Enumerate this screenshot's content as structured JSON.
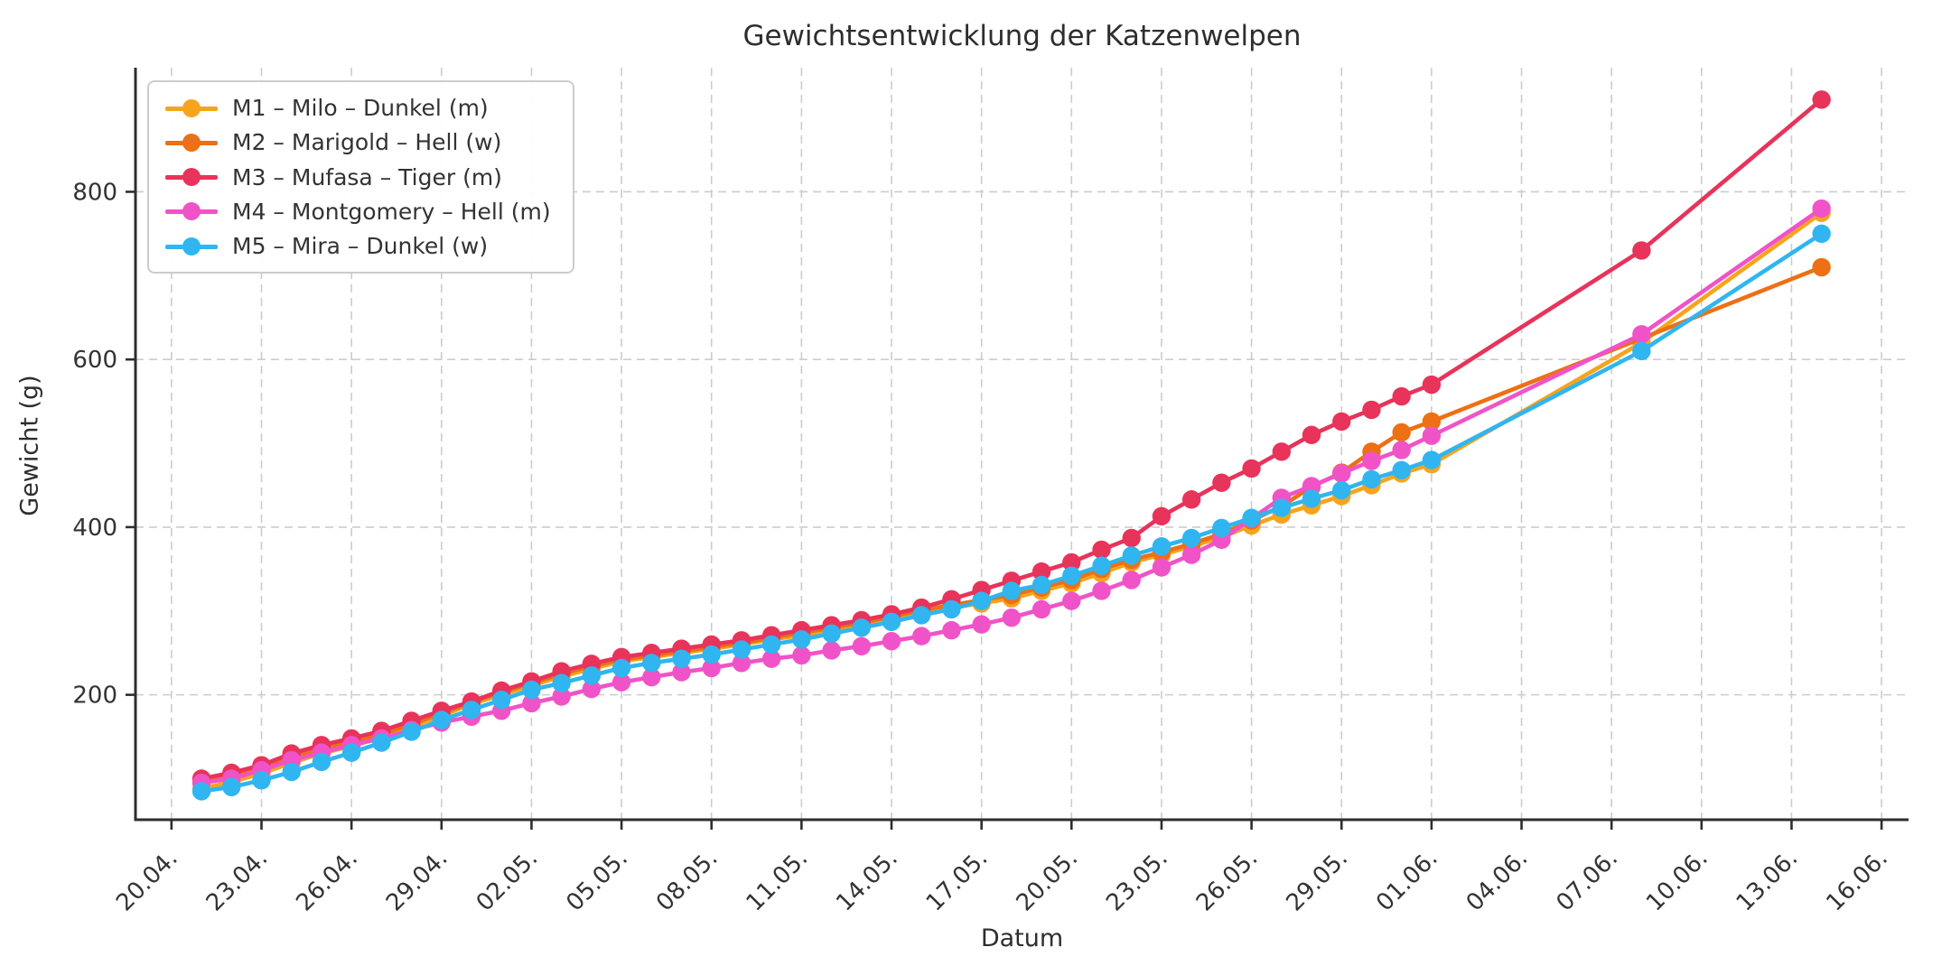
{
  "chart_data": {
    "type": "line",
    "title": "Gewichtsentwicklung der Katzenwelpen",
    "xlabel": "Datum",
    "ylabel": "Gewicht (g)",
    "grid": true,
    "grid_color": "#cccccc",
    "legend_position": "upper left",
    "x_unit": "days after 20.04.",
    "xlim_days": [
      -1.2,
      57.9
    ],
    "ylim": [
      51,
      948
    ],
    "y_ticks": [
      200,
      400,
      600,
      800
    ],
    "x_tick_days": [
      0,
      3,
      6,
      9,
      12,
      15,
      18,
      21,
      24,
      27,
      30,
      33,
      36,
      39,
      42,
      45,
      48,
      51,
      54,
      57
    ],
    "x_tick_labels": [
      "20.04.",
      "23.04.",
      "26.04.",
      "29.04.",
      "02.05.",
      "05.05.",
      "08.05.",
      "11.05.",
      "14.05.",
      "17.05.",
      "20.05.",
      "23.05.",
      "26.05.",
      "29.05.",
      "01.06.",
      "04.06.",
      "07.06.",
      "10.06.",
      "13.06.",
      "16.06."
    ],
    "daily_note": "each series has daily measurements from 21.04. (day 1) to 01.06. (day 42); extra points are later measurements",
    "series": [
      {
        "id": "M1",
        "label": "M1 – Milo – Dunkel (m)",
        "color": "#F6A41D",
        "daily_start_day": 1,
        "daily_start_date": "21.04.",
        "daily_values_g": [
          88,
          96,
          106,
          119,
          130,
          139,
          149,
          162,
          175,
          189,
          200,
          211,
          222,
          231,
          240,
          245,
          250,
          255,
          260,
          266,
          271,
          277,
          283,
          290,
          298,
          304,
          309,
          315,
          324,
          333,
          345,
          358,
          367,
          377,
          388,
          402,
          415,
          426,
          437,
          450,
          464,
          475
        ],
        "extra_points": [
          {
            "day": 49,
            "date": "08.06.",
            "g": 620
          },
          {
            "day": 55,
            "date": "14.06.",
            "g": 775
          }
        ]
      },
      {
        "id": "M2",
        "label": "M2 – Marigold – Hell (w)",
        "color": "#ED7014",
        "daily_start_day": 1,
        "daily_start_date": "21.04.",
        "daily_values_g": [
          97,
          104,
          112,
          125,
          136,
          144,
          153,
          165,
          178,
          191,
          203,
          214,
          225,
          234,
          242,
          247,
          252,
          257,
          262,
          268,
          274,
          280,
          286,
          293,
          301,
          307,
          313,
          319,
          328,
          337,
          350,
          361,
          370,
          380,
          392,
          408,
          425,
          448,
          465,
          490,
          513,
          526
        ],
        "extra_points": [
          {
            "day": 55,
            "date": "14.06.",
            "g": 710
          }
        ]
      },
      {
        "id": "M3",
        "label": "M3 – Mufasa – Tiger (m)",
        "color": "#E8335A",
        "daily_start_day": 1,
        "daily_start_date": "21.04.",
        "daily_values_g": [
          100,
          107,
          116,
          130,
          140,
          148,
          157,
          169,
          181,
          192,
          205,
          216,
          228,
          237,
          245,
          250,
          255,
          260,
          265,
          271,
          277,
          283,
          289,
          296,
          304,
          314,
          325,
          336,
          347,
          358,
          373,
          387,
          413,
          433,
          453,
          470,
          490,
          510,
          526,
          540,
          556,
          570
        ],
        "extra_points": [
          {
            "day": 49,
            "date": "08.06.",
            "g": 730
          },
          {
            "day": 55,
            "date": "14.06.",
            "g": 910
          }
        ]
      },
      {
        "id": "M4",
        "label": "M4 – Montgomery – Hell (m)",
        "color": "#F053C7",
        "daily_start_day": 1,
        "daily_start_date": "21.04.",
        "daily_values_g": [
          95,
          100,
          110,
          122,
          131,
          140,
          148,
          158,
          167,
          174,
          181,
          190,
          198,
          207,
          215,
          221,
          227,
          232,
          238,
          243,
          247,
          253,
          258,
          264,
          270,
          277,
          284,
          292,
          302,
          312,
          324,
          337,
          352,
          367,
          385,
          410,
          435,
          449,
          464,
          479,
          492,
          509
        ],
        "extra_points": [
          {
            "day": 49,
            "date": "08.06.",
            "g": 630
          },
          {
            "day": 55,
            "date": "14.06.",
            "g": 780
          }
        ]
      },
      {
        "id": "M5",
        "label": "M5 – Mira – Dunkel (w)",
        "color": "#30B5F0",
        "daily_start_day": 1,
        "daily_start_date": "21.04.",
        "daily_values_g": [
          85,
          90,
          98,
          108,
          120,
          131,
          143,
          156,
          170,
          182,
          194,
          206,
          214,
          223,
          232,
          238,
          243,
          248,
          254,
          260,
          266,
          273,
          280,
          287,
          295,
          302,
          312,
          324,
          331,
          342,
          354,
          366,
          377,
          387,
          399,
          411,
          423,
          434,
          444,
          457,
          468,
          480
        ],
        "extra_points": [
          {
            "day": 49,
            "date": "08.06.",
            "g": 610
          },
          {
            "day": 55,
            "date": "14.06.",
            "g": 750
          }
        ]
      }
    ]
  }
}
